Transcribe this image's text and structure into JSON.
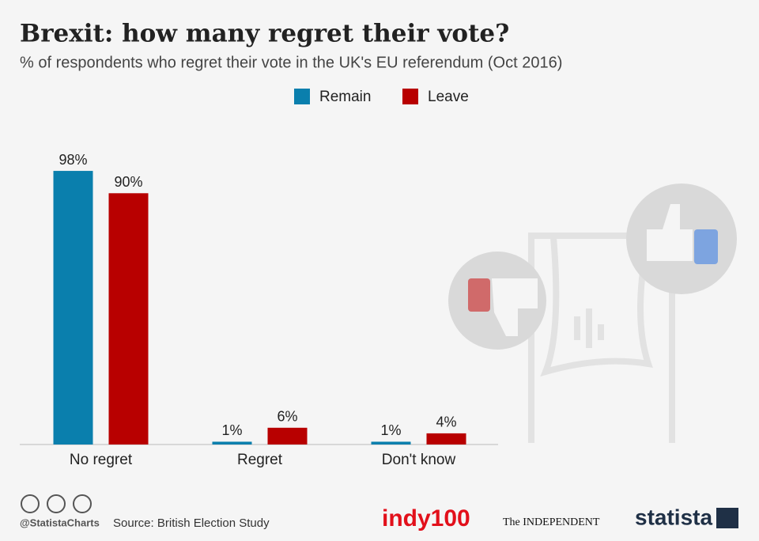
{
  "chart_data": {
    "type": "bar",
    "title": "Brexit: how many regret their vote?",
    "subtitle": "% of respondents who regret their vote in the UK's EU referendum (Oct 2016)",
    "categories": [
      "No regret",
      "Regret",
      "Don't know"
    ],
    "series": [
      {
        "name": "Remain",
        "color": "#0a7fad",
        "values": [
          98,
          1,
          1
        ],
        "value_labels": [
          "98%",
          "1%",
          "1%"
        ]
      },
      {
        "name": "Leave",
        "color": "#b80000",
        "values": [
          90,
          6,
          4
        ],
        "value_labels": [
          "90%",
          "6%",
          "4%"
        ]
      }
    ],
    "legend": "top"
  },
  "footer": {
    "handle": "@StatistaCharts",
    "source": "Source: British Election Study",
    "logos": [
      "indy100",
      "The INDEPENDENT",
      "statista"
    ]
  }
}
